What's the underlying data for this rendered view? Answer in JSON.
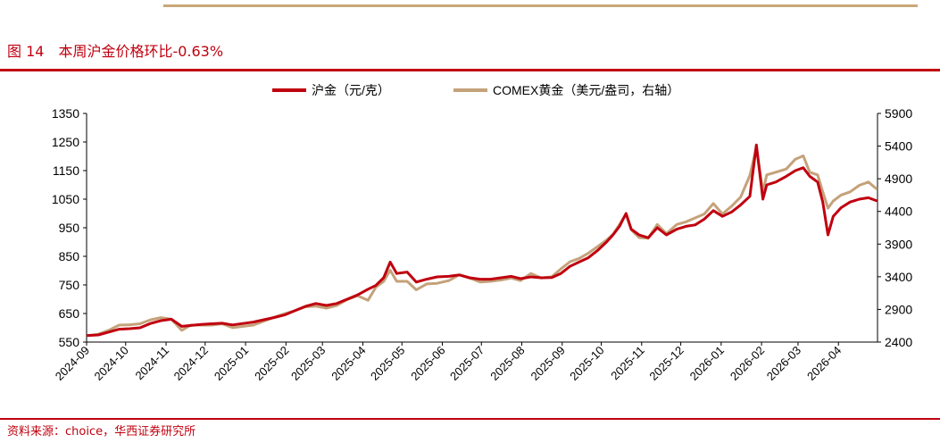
{
  "figure": {
    "title": "图 14　本周沪金价格环比-0.63%",
    "source": "资料来源：choice，华西证券研究所"
  },
  "colors": {
    "shfe": "#c0000f",
    "comex": "#c4a27a",
    "title": "#c0000f",
    "rule_top": "#c9a878"
  },
  "chart_data": {
    "type": "line",
    "legend_position": "top-center",
    "grid": false,
    "y_left": {
      "ylim": [
        550,
        1350
      ],
      "ticks": [
        "1350",
        "1250",
        "1150",
        "1050",
        "950",
        "850",
        "750",
        "650",
        "550"
      ]
    },
    "y_right": {
      "ylim": [
        2400,
        5900
      ],
      "ticks": [
        "5900",
        "5400",
        "4900",
        "4400",
        "3900",
        "3400",
        "2900",
        "2400"
      ]
    },
    "x_ticks": [
      "2024-09",
      "2024-10",
      "2024-11",
      "2024-12",
      "2025-01",
      "2025-02",
      "2025-03",
      "2025-04",
      "2025-05",
      "2025-06",
      "2025-07",
      "2025-08",
      "2025-09",
      "2025-10",
      "2025-11",
      "2025-12",
      "2026-01",
      "2026-02",
      "2026-03",
      "2026-04"
    ],
    "series": [
      {
        "name": "沪金（元/克）",
        "axis": "left",
        "points": [
          [
            "2024-09-02",
            573
          ],
          [
            "2024-09-10",
            575
          ],
          [
            "2024-09-18",
            585
          ],
          [
            "2024-09-26",
            595
          ],
          [
            "2024-10-04",
            597
          ],
          [
            "2024-10-12",
            600
          ],
          [
            "2024-10-20",
            615
          ],
          [
            "2024-10-28",
            625
          ],
          [
            "2024-11-05",
            630
          ],
          [
            "2024-11-13",
            605
          ],
          [
            "2024-11-20",
            608
          ],
          [
            "2024-11-28",
            612
          ],
          [
            "2024-12-06",
            614
          ],
          [
            "2024-12-14",
            616
          ],
          [
            "2024-12-22",
            610
          ],
          [
            "2024-12-30",
            615
          ],
          [
            "2025-01-07",
            620
          ],
          [
            "2025-01-15",
            628
          ],
          [
            "2025-01-23",
            636
          ],
          [
            "2025-01-31",
            645
          ],
          [
            "2025-02-08",
            660
          ],
          [
            "2025-02-16",
            675
          ],
          [
            "2025-02-24",
            685
          ],
          [
            "2025-03-04",
            678
          ],
          [
            "2025-03-12",
            685
          ],
          [
            "2025-03-20",
            700
          ],
          [
            "2025-03-28",
            715
          ],
          [
            "2025-04-05",
            735
          ],
          [
            "2025-04-11",
            748
          ],
          [
            "2025-04-17",
            775
          ],
          [
            "2025-04-22",
            830
          ],
          [
            "2025-04-27",
            790
          ],
          [
            "2025-05-05",
            795
          ],
          [
            "2025-05-12",
            760
          ],
          [
            "2025-05-20",
            770
          ],
          [
            "2025-05-28",
            778
          ],
          [
            "2025-06-06",
            780
          ],
          [
            "2025-06-14",
            785
          ],
          [
            "2025-06-22",
            775
          ],
          [
            "2025-06-30",
            770
          ],
          [
            "2025-07-08",
            770
          ],
          [
            "2025-07-16",
            775
          ],
          [
            "2025-07-24",
            780
          ],
          [
            "2025-07-31",
            772
          ],
          [
            "2025-08-08",
            778
          ],
          [
            "2025-08-16",
            775
          ],
          [
            "2025-08-24",
            776
          ],
          [
            "2025-08-31",
            790
          ],
          [
            "2025-09-07",
            815
          ],
          [
            "2025-09-14",
            830
          ],
          [
            "2025-09-21",
            845
          ],
          [
            "2025-09-28",
            870
          ],
          [
            "2025-10-05",
            900
          ],
          [
            "2025-10-10",
            925
          ],
          [
            "2025-10-15",
            955
          ],
          [
            "2025-10-20",
            1000
          ],
          [
            "2025-10-24",
            945
          ],
          [
            "2025-10-30",
            925
          ],
          [
            "2025-11-06",
            915
          ],
          [
            "2025-11-13",
            950
          ],
          [
            "2025-11-20",
            925
          ],
          [
            "2025-11-28",
            945
          ],
          [
            "2025-12-05",
            955
          ],
          [
            "2025-12-12",
            960
          ],
          [
            "2025-12-19",
            980
          ],
          [
            "2025-12-26",
            1010
          ],
          [
            "2026-01-02",
            990
          ],
          [
            "2026-01-09",
            1005
          ],
          [
            "2026-01-16",
            1030
          ],
          [
            "2026-01-23",
            1060
          ],
          [
            "2026-01-28",
            1240
          ],
          [
            "2026-02-02",
            1050
          ],
          [
            "2026-02-05",
            1100
          ],
          [
            "2026-02-12",
            1110
          ],
          [
            "2026-02-20",
            1130
          ],
          [
            "2026-02-27",
            1150
          ],
          [
            "2026-03-05",
            1160
          ],
          [
            "2026-03-10",
            1130
          ],
          [
            "2026-03-16",
            1110
          ],
          [
            "2026-03-20",
            1040
          ],
          [
            "2026-03-24",
            925
          ],
          [
            "2026-03-28",
            990
          ],
          [
            "2026-04-03",
            1020
          ],
          [
            "2026-04-10",
            1040
          ],
          [
            "2026-04-17",
            1050
          ],
          [
            "2026-04-24",
            1055
          ],
          [
            "2026-04-30",
            1045
          ]
        ]
      },
      {
        "name": "COMEX黄金（美元/盎司，右轴）",
        "axis": "right",
        "points": [
          [
            "2024-09-02",
            2500
          ],
          [
            "2024-09-10",
            2520
          ],
          [
            "2024-09-18",
            2580
          ],
          [
            "2024-09-26",
            2660
          ],
          [
            "2024-10-04",
            2665
          ],
          [
            "2024-10-12",
            2680
          ],
          [
            "2024-10-20",
            2740
          ],
          [
            "2024-10-28",
            2775
          ],
          [
            "2024-11-05",
            2750
          ],
          [
            "2024-11-13",
            2580
          ],
          [
            "2024-11-20",
            2660
          ],
          [
            "2024-11-28",
            2660
          ],
          [
            "2024-12-06",
            2660
          ],
          [
            "2024-12-14",
            2680
          ],
          [
            "2024-12-22",
            2620
          ],
          [
            "2024-12-30",
            2640
          ],
          [
            "2025-01-07",
            2660
          ],
          [
            "2025-01-15",
            2720
          ],
          [
            "2025-01-23",
            2780
          ],
          [
            "2025-01-31",
            2835
          ],
          [
            "2025-02-08",
            2880
          ],
          [
            "2025-02-16",
            2940
          ],
          [
            "2025-02-24",
            2950
          ],
          [
            "2025-03-04",
            2920
          ],
          [
            "2025-03-12",
            2960
          ],
          [
            "2025-03-20",
            3050
          ],
          [
            "2025-03-28",
            3110
          ],
          [
            "2025-04-05",
            3040
          ],
          [
            "2025-04-11",
            3240
          ],
          [
            "2025-04-17",
            3330
          ],
          [
            "2025-04-22",
            3500
          ],
          [
            "2025-04-27",
            3330
          ],
          [
            "2025-05-05",
            3330
          ],
          [
            "2025-05-12",
            3200
          ],
          [
            "2025-05-20",
            3290
          ],
          [
            "2025-05-28",
            3300
          ],
          [
            "2025-06-06",
            3340
          ],
          [
            "2025-06-14",
            3430
          ],
          [
            "2025-06-22",
            3380
          ],
          [
            "2025-06-30",
            3320
          ],
          [
            "2025-07-08",
            3330
          ],
          [
            "2025-07-16",
            3350
          ],
          [
            "2025-07-24",
            3380
          ],
          [
            "2025-07-31",
            3340
          ],
          [
            "2025-08-08",
            3450
          ],
          [
            "2025-08-16",
            3380
          ],
          [
            "2025-08-24",
            3400
          ],
          [
            "2025-08-31",
            3520
          ],
          [
            "2025-09-07",
            3630
          ],
          [
            "2025-09-14",
            3680
          ],
          [
            "2025-09-21",
            3760
          ],
          [
            "2025-09-28",
            3860
          ],
          [
            "2025-10-05",
            3960
          ],
          [
            "2025-10-10",
            4050
          ],
          [
            "2025-10-15",
            4200
          ],
          [
            "2025-10-20",
            4360
          ],
          [
            "2025-10-24",
            4120
          ],
          [
            "2025-10-30",
            4000
          ],
          [
            "2025-11-06",
            3990
          ],
          [
            "2025-11-13",
            4200
          ],
          [
            "2025-11-20",
            4060
          ],
          [
            "2025-11-28",
            4200
          ],
          [
            "2025-12-05",
            4240
          ],
          [
            "2025-12-12",
            4300
          ],
          [
            "2025-12-19",
            4360
          ],
          [
            "2025-12-26",
            4520
          ],
          [
            "2026-01-02",
            4360
          ],
          [
            "2026-01-09",
            4480
          ],
          [
            "2026-01-16",
            4620
          ],
          [
            "2026-01-23",
            4950
          ],
          [
            "2026-01-28",
            5380
          ],
          [
            "2026-02-02",
            4700
          ],
          [
            "2026-02-05",
            4960
          ],
          [
            "2026-02-12",
            5000
          ],
          [
            "2026-02-20",
            5050
          ],
          [
            "2026-02-27",
            5200
          ],
          [
            "2026-03-05",
            5250
          ],
          [
            "2026-03-10",
            5000
          ],
          [
            "2026-03-16",
            4960
          ],
          [
            "2026-03-20",
            4700
          ],
          [
            "2026-03-24",
            4450
          ],
          [
            "2026-03-28",
            4560
          ],
          [
            "2026-04-03",
            4650
          ],
          [
            "2026-04-10",
            4700
          ],
          [
            "2026-04-17",
            4800
          ],
          [
            "2026-04-24",
            4850
          ],
          [
            "2026-04-30",
            4750
          ]
        ]
      }
    ]
  }
}
